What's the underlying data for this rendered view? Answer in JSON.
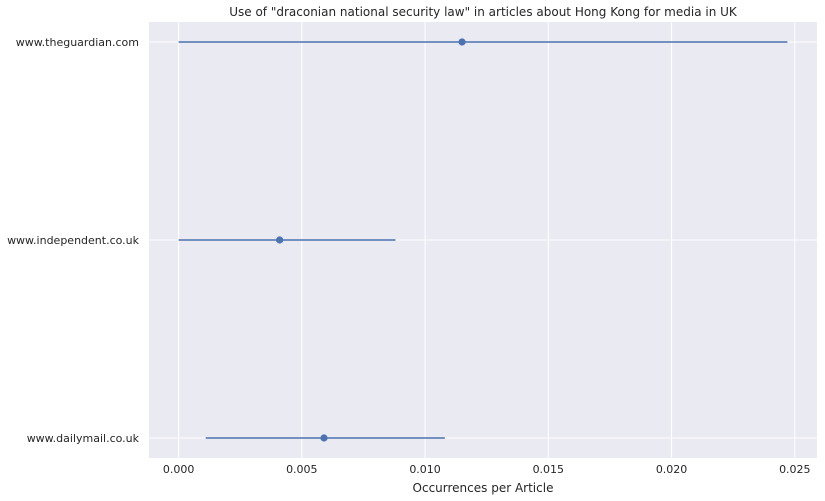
{
  "chart_data": {
    "type": "scatter",
    "title": "Use of \"draconian national security law\" in articles about Hong Kong for media in UK",
    "xlabel": "Occurrences per Article",
    "ylabel": "",
    "xlim": [
      -0.0012,
      0.0259
    ],
    "x_ticks": [
      0.0,
      0.005,
      0.01,
      0.015,
      0.02,
      0.025
    ],
    "x_tick_labels": [
      "0.000",
      "0.005",
      "0.010",
      "0.015",
      "0.020",
      "0.025"
    ],
    "categories": [
      "www.theguardian.com",
      "www.independent.co.uk",
      "www.dailymail.co.uk"
    ],
    "points": [
      {
        "category": "www.theguardian.com",
        "value": 0.0115,
        "ci_low": 0.0,
        "ci_high": 0.0247
      },
      {
        "category": "www.independent.co.uk",
        "value": 0.0041,
        "ci_low": 0.0,
        "ci_high": 0.0088
      },
      {
        "category": "www.dailymail.co.uk",
        "value": 0.0059,
        "ci_low": 0.0011,
        "ci_high": 0.0108
      }
    ],
    "grid": true,
    "legend": "none",
    "colors": {
      "background": "#eaeaf2",
      "grid": "#ffffff",
      "series": "#4c72b0",
      "text": "#262626"
    }
  }
}
